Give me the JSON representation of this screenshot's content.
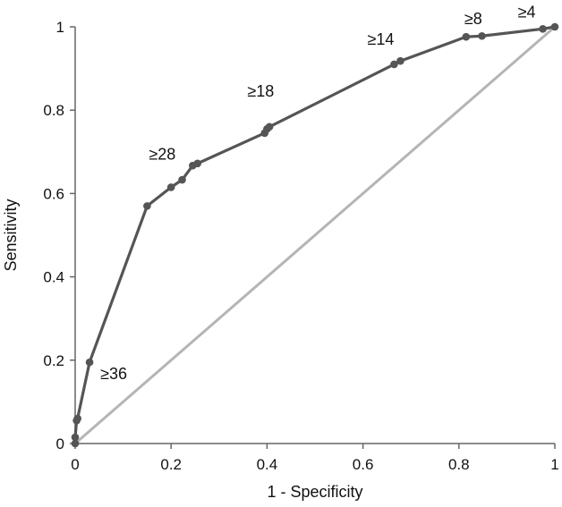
{
  "chart_data": {
    "type": "line",
    "title": "",
    "xlabel": "1 - Specificity",
    "ylabel": "Sensitivity",
    "xlim": [
      0,
      1
    ],
    "ylim": [
      0,
      1
    ],
    "x_ticks": [
      "0",
      "0.2",
      "0.4",
      "0.6",
      "0.8",
      "1"
    ],
    "y_ticks": [
      "0",
      "0.2",
      "0.4",
      "0.6",
      "0.8",
      "1"
    ],
    "grid": false,
    "legend": "none",
    "series": [
      {
        "color": "#555555",
        "marker": "circle",
        "points": [
          {
            "x": 0.0,
            "y": 0.0
          },
          {
            "x": 0.0,
            "y": 0.015
          },
          {
            "x": 0.003,
            "y": 0.055
          },
          {
            "x": 0.005,
            "y": 0.06
          },
          {
            "x": 0.03,
            "y": 0.195
          },
          {
            "x": 0.15,
            "y": 0.57
          },
          {
            "x": 0.2,
            "y": 0.615
          },
          {
            "x": 0.223,
            "y": 0.633
          },
          {
            "x": 0.245,
            "y": 0.667
          },
          {
            "x": 0.255,
            "y": 0.672
          },
          {
            "x": 0.395,
            "y": 0.745
          },
          {
            "x": 0.4,
            "y": 0.755
          },
          {
            "x": 0.405,
            "y": 0.76
          },
          {
            "x": 0.665,
            "y": 0.91
          },
          {
            "x": 0.678,
            "y": 0.918
          },
          {
            "x": 0.815,
            "y": 0.976
          },
          {
            "x": 0.848,
            "y": 0.978
          },
          {
            "x": 0.975,
            "y": 0.995
          },
          {
            "x": 1.0,
            "y": 1.0
          }
        ]
      },
      {
        "color": "#b5b5b5",
        "marker": "none",
        "points": [
          {
            "x": 0,
            "y": 0
          },
          {
            "x": 1,
            "y": 1
          }
        ]
      }
    ],
    "annotations": [
      {
        "text": "≥36",
        "x": 0.03,
        "y": 0.195
      },
      {
        "text": "≥28",
        "x": 0.15,
        "y": 0.57
      },
      {
        "text": "≥18",
        "x": 0.4,
        "y": 0.755
      },
      {
        "text": "≥14",
        "x": 0.665,
        "y": 0.91
      },
      {
        "text": "≥8",
        "x": 0.815,
        "y": 0.976
      },
      {
        "text": "≥4",
        "x": 0.975,
        "y": 0.995
      }
    ]
  }
}
